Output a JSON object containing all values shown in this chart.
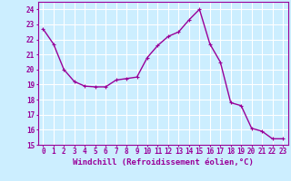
{
  "x": [
    0,
    1,
    2,
    3,
    4,
    5,
    6,
    7,
    8,
    9,
    10,
    11,
    12,
    13,
    14,
    15,
    16,
    17,
    18,
    19,
    20,
    21,
    22,
    23
  ],
  "y": [
    22.7,
    21.7,
    20.0,
    19.2,
    18.9,
    18.85,
    18.85,
    19.3,
    19.4,
    19.5,
    20.8,
    21.6,
    22.2,
    22.5,
    23.3,
    24.0,
    21.7,
    20.5,
    17.8,
    17.6,
    16.1,
    15.9,
    15.4,
    15.4
  ],
  "line_color": "#990099",
  "marker": "+",
  "marker_size": 3,
  "background_color": "#cceeff",
  "grid_color": "#ffffff",
  "xlabel": "Windchill (Refroidissement éolien,°C)",
  "ylim": [
    15,
    24.5
  ],
  "xlim": [
    -0.5,
    23.5
  ],
  "yticks": [
    15,
    16,
    17,
    18,
    19,
    20,
    21,
    22,
    23,
    24
  ],
  "xticks": [
    0,
    1,
    2,
    3,
    4,
    5,
    6,
    7,
    8,
    9,
    10,
    11,
    12,
    13,
    14,
    15,
    16,
    17,
    18,
    19,
    20,
    21,
    22,
    23
  ],
  "xlabel_fontsize": 6.5,
  "tick_fontsize": 5.5,
  "linewidth": 1.0
}
